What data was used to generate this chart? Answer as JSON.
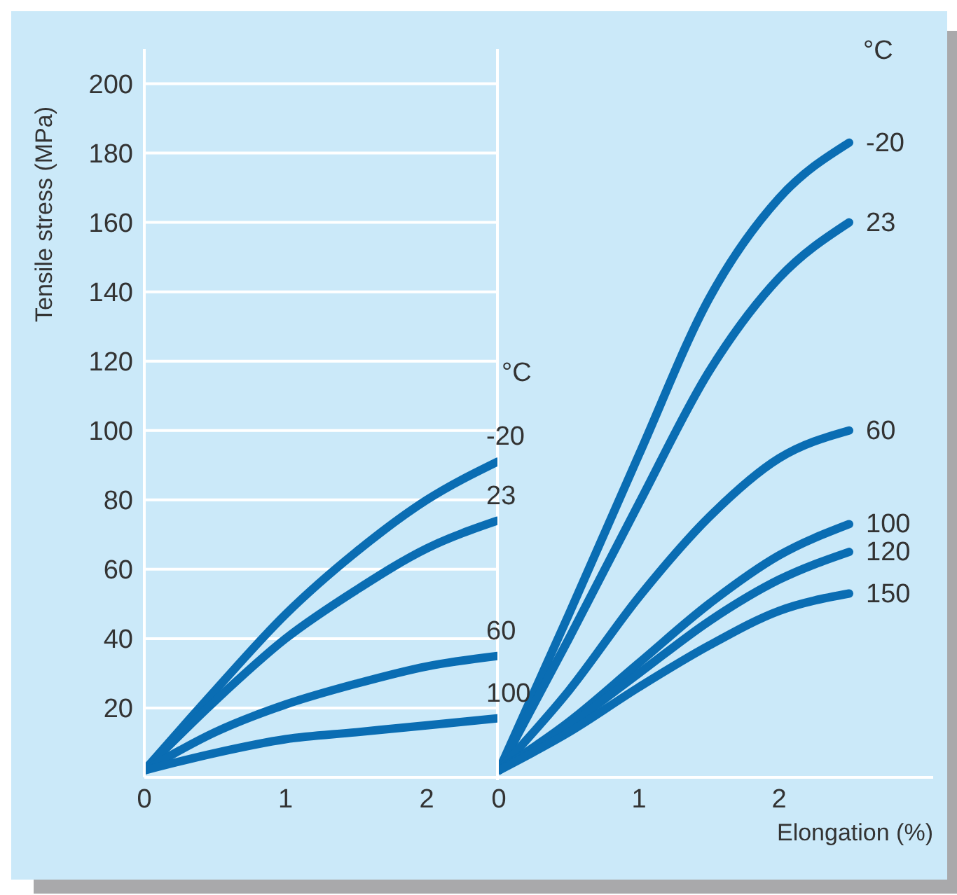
{
  "chart_data": [
    {
      "type": "line",
      "ylabel": "Tensile stress (MPa)",
      "legend_title": "°C",
      "xlim": [
        0,
        2.5
      ],
      "xticks": [
        0,
        1,
        2
      ],
      "ylim": [
        0,
        210
      ],
      "yticks": [
        20,
        40,
        60,
        80,
        100,
        120,
        140,
        160,
        180,
        200
      ],
      "grid": "y",
      "marker": "none",
      "line_style": "solid",
      "series": [
        {
          "name": "-20",
          "color": "#0a6db3",
          "x": [
            0,
            0.5,
            1,
            1.5,
            2,
            2.5
          ],
          "values": [
            2,
            25,
            47,
            65,
            80,
            91
          ]
        },
        {
          "name": "23",
          "color": "#0a6db3",
          "x": [
            0,
            0.5,
            1,
            1.5,
            2,
            2.5
          ],
          "values": [
            2,
            22,
            40,
            54,
            66,
            74
          ]
        },
        {
          "name": "60",
          "color": "#0a6db3",
          "x": [
            0,
            0.5,
            1,
            1.5,
            2,
            2.5
          ],
          "values": [
            2,
            13,
            21,
            27,
            32,
            35
          ]
        },
        {
          "name": "100",
          "color": "#0a6db3",
          "x": [
            0,
            0.5,
            1,
            1.5,
            2,
            2.5
          ],
          "values": [
            2,
            7,
            11,
            13,
            15,
            17
          ]
        }
      ]
    },
    {
      "type": "line",
      "xlabel": "Elongation (%)",
      "legend_title": "°C",
      "xlim": [
        0,
        3.1
      ],
      "xticks": [
        0,
        1,
        2
      ],
      "ylim": [
        0,
        210
      ],
      "yticks": [
        20,
        40,
        60,
        80,
        100,
        120,
        140,
        160,
        180,
        200
      ],
      "tick_labels": "x",
      "grid": "y",
      "marker": "none",
      "line_style": "solid",
      "series": [
        {
          "name": "-20",
          "color": "#0a6db3",
          "x": [
            0,
            0.5,
            1,
            1.5,
            2,
            2.5
          ],
          "values": [
            2,
            47,
            93,
            138,
            167,
            183
          ]
        },
        {
          "name": "23",
          "color": "#0a6db3",
          "x": [
            0,
            0.5,
            1,
            1.5,
            2,
            2.5
          ],
          "values": [
            2,
            40,
            79,
            117,
            144,
            160
          ]
        },
        {
          "name": "60",
          "color": "#0a6db3",
          "x": [
            0,
            0.5,
            1,
            1.5,
            2,
            2.5
          ],
          "values": [
            2,
            25,
            52,
            75,
            92,
            100
          ]
        },
        {
          "name": "100",
          "color": "#0a6db3",
          "x": [
            0,
            0.5,
            1,
            1.5,
            2,
            2.5
          ],
          "values": [
            2,
            16,
            33,
            50,
            64,
            73
          ]
        },
        {
          "name": "120",
          "color": "#0a6db3",
          "x": [
            0,
            0.5,
            1,
            1.5,
            2,
            2.5
          ],
          "values": [
            2,
            15,
            30,
            45,
            57,
            65
          ]
        },
        {
          "name": "150",
          "color": "#0a6db3",
          "x": [
            0,
            0.5,
            1,
            1.5,
            2,
            2.5
          ],
          "values": [
            2,
            13,
            26,
            38,
            48,
            53
          ]
        }
      ]
    }
  ]
}
